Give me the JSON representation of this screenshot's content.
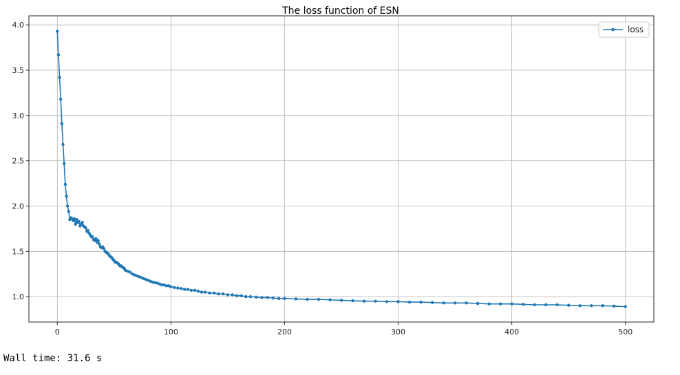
{
  "output": {
    "wall_time": "Wall time: 31.6 s"
  },
  "colors": {
    "series": "#1f77b4",
    "grid": "#b0b0b0",
    "axis": "#262626"
  },
  "chart_data": {
    "type": "line",
    "title": "The loss function of ESN",
    "xlabel": "",
    "ylabel": "",
    "xlim": [
      -25,
      525
    ],
    "ylim": [
      0.72,
      4.1
    ],
    "xticks": [
      0,
      100,
      200,
      300,
      400,
      500
    ],
    "yticks": [
      1.0,
      1.5,
      2.0,
      2.5,
      3.0,
      3.5,
      4.0
    ],
    "xtick_labels": [
      "0",
      "100",
      "200",
      "300",
      "400",
      "500"
    ],
    "ytick_labels": [
      "1.0",
      "1.5",
      "2.0",
      "2.5",
      "3.0",
      "3.5",
      "4.0"
    ],
    "grid": true,
    "legend": "top-right",
    "marker": "point",
    "series": [
      {
        "name": "loss",
        "x": [
          0,
          1,
          2,
          3,
          4,
          5,
          6,
          7,
          8,
          9,
          10,
          11,
          12,
          13,
          14,
          15,
          16,
          17,
          18,
          19,
          20,
          21,
          22,
          23,
          24,
          25,
          26,
          27,
          28,
          29,
          30,
          31,
          32,
          33,
          34,
          35,
          36,
          37,
          38,
          39,
          40,
          41,
          42,
          43,
          44,
          45,
          46,
          47,
          48,
          49,
          50,
          51,
          52,
          53,
          54,
          55,
          56,
          57,
          58,
          59,
          60,
          62,
          64,
          66,
          68,
          70,
          72,
          74,
          76,
          78,
          80,
          82,
          84,
          86,
          88,
          90,
          92,
          94,
          96,
          98,
          100,
          103,
          106,
          109,
          112,
          115,
          118,
          121,
          124,
          127,
          130,
          134,
          138,
          142,
          146,
          150,
          154,
          158,
          162,
          166,
          170,
          175,
          180,
          185,
          190,
          195,
          200,
          210,
          220,
          230,
          240,
          250,
          260,
          270,
          280,
          290,
          300,
          310,
          320,
          330,
          340,
          350,
          360,
          370,
          380,
          390,
          400,
          410,
          420,
          430,
          440,
          450,
          460,
          470,
          480,
          490,
          500
        ],
        "values": [
          3.93,
          3.67,
          3.42,
          3.18,
          2.91,
          2.68,
          2.47,
          2.24,
          2.11,
          2.0,
          1.94,
          1.85,
          1.87,
          1.86,
          1.84,
          1.86,
          1.8,
          1.85,
          1.82,
          1.83,
          1.78,
          1.8,
          1.82,
          1.78,
          1.77,
          1.76,
          1.72,
          1.73,
          1.7,
          1.68,
          1.66,
          1.66,
          1.63,
          1.62,
          1.64,
          1.6,
          1.62,
          1.58,
          1.55,
          1.54,
          1.55,
          1.53,
          1.5,
          1.49,
          1.48,
          1.47,
          1.45,
          1.44,
          1.43,
          1.41,
          1.4,
          1.38,
          1.38,
          1.37,
          1.36,
          1.34,
          1.34,
          1.33,
          1.32,
          1.31,
          1.29,
          1.28,
          1.27,
          1.25,
          1.24,
          1.23,
          1.22,
          1.21,
          1.2,
          1.19,
          1.18,
          1.17,
          1.16,
          1.155,
          1.15,
          1.14,
          1.13,
          1.13,
          1.12,
          1.12,
          1.11,
          1.1,
          1.095,
          1.09,
          1.08,
          1.08,
          1.07,
          1.07,
          1.06,
          1.05,
          1.05,
          1.04,
          1.04,
          1.03,
          1.03,
          1.02,
          1.02,
          1.01,
          1.01,
          1.0,
          1.0,
          0.995,
          0.99,
          0.99,
          0.985,
          0.98,
          0.98,
          0.975,
          0.97,
          0.97,
          0.965,
          0.96,
          0.955,
          0.95,
          0.95,
          0.945,
          0.945,
          0.94,
          0.94,
          0.935,
          0.93,
          0.93,
          0.93,
          0.925,
          0.92,
          0.92,
          0.92,
          0.915,
          0.91,
          0.91,
          0.91,
          0.905,
          0.9,
          0.9,
          0.9,
          0.895,
          0.89
        ]
      }
    ]
  }
}
